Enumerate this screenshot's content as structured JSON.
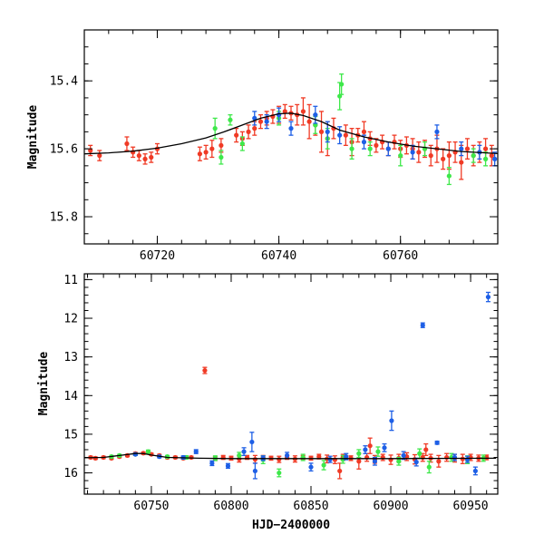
{
  "chart_data": [
    {
      "type": "scatter",
      "title": "",
      "xlabel": "",
      "ylabel": "Magnitude",
      "xlim": [
        60708,
        60776
      ],
      "ylim": [
        15.25,
        15.88
      ],
      "y_inverted": true,
      "grid": false,
      "x_ticks": [
        60720,
        60740,
        60760
      ],
      "x_tick_labels": [
        "60720",
        "60740",
        "60760"
      ],
      "y_ticks": [
        15.4,
        15.6,
        15.8
      ],
      "y_tick_labels": [
        "15.4",
        "15.6",
        "15.8"
      ],
      "model_curve": {
        "name": "model",
        "color": "#000000",
        "x": [
          60708,
          60712,
          60716,
          60720,
          60724,
          60728,
          60731,
          60734,
          60737,
          60740,
          60742,
          60744,
          60747,
          60750,
          60754,
          60758,
          60762,
          60766,
          60770,
          60774,
          60776
        ],
        "y": [
          15.615,
          15.612,
          15.607,
          15.598,
          15.585,
          15.568,
          15.55,
          15.53,
          15.51,
          15.497,
          15.495,
          15.502,
          15.52,
          15.545,
          15.565,
          15.58,
          15.592,
          15.6,
          15.608,
          15.612,
          15.614
        ]
      },
      "series": [
        {
          "name": "red",
          "color": "#f03a25",
          "x": [
            60709,
            60710.5,
            60715,
            60716,
            60717,
            60718,
            60719,
            60720,
            60727,
            60728,
            60729,
            60730.5,
            60733,
            60734,
            60735,
            60736,
            60737,
            60738,
            60739,
            60740,
            60741,
            60742,
            60743,
            60744,
            60745,
            60746,
            60747,
            60748,
            60749,
            60751,
            60752,
            60753,
            60754,
            60755,
            60756,
            60757,
            60758,
            60759,
            60760,
            60761,
            60762,
            60763,
            60764,
            60765,
            60766,
            60767,
            60768,
            60769,
            60770,
            60771,
            60772,
            60773,
            60774,
            60775
          ],
          "y": [
            15.605,
            15.62,
            15.585,
            15.61,
            15.62,
            15.63,
            15.625,
            15.6,
            15.615,
            15.61,
            15.6,
            15.59,
            15.56,
            15.57,
            15.55,
            15.54,
            15.52,
            15.51,
            15.505,
            15.5,
            15.49,
            15.495,
            15.5,
            15.49,
            15.52,
            15.53,
            15.55,
            15.57,
            15.54,
            15.56,
            15.58,
            15.56,
            15.55,
            15.57,
            15.59,
            15.58,
            15.6,
            15.58,
            15.6,
            15.59,
            15.6,
            15.61,
            15.6,
            15.62,
            15.6,
            15.63,
            15.62,
            15.61,
            15.64,
            15.6,
            15.62,
            15.61,
            15.6,
            15.62
          ],
          "yerr": [
            0.015,
            0.015,
            0.02,
            0.015,
            0.015,
            0.015,
            0.015,
            0.015,
            0.02,
            0.02,
            0.025,
            0.02,
            0.02,
            0.02,
            0.02,
            0.02,
            0.02,
            0.02,
            0.02,
            0.025,
            0.02,
            0.02,
            0.03,
            0.04,
            0.05,
            0.03,
            0.06,
            0.05,
            0.03,
            0.03,
            0.04,
            0.02,
            0.03,
            0.02,
            0.02,
            0.02,
            0.02,
            0.02,
            0.025,
            0.025,
            0.03,
            0.03,
            0.025,
            0.03,
            0.04,
            0.03,
            0.04,
            0.03,
            0.05,
            0.03,
            0.03,
            0.03,
            0.03,
            0.03
          ]
        },
        {
          "name": "green",
          "color": "#3ee84a",
          "x": [
            60729.5,
            60730.5,
            60732,
            60734,
            60740,
            60746,
            60748,
            60750,
            60750.3,
            60752,
            60755,
            60760,
            60764,
            60768,
            60772,
            60774
          ],
          "y": [
            15.54,
            15.625,
            15.515,
            15.585,
            15.51,
            15.53,
            15.57,
            15.445,
            15.41,
            15.6,
            15.6,
            15.62,
            15.6,
            15.68,
            15.62,
            15.63
          ],
          "yerr": [
            0.03,
            0.02,
            0.015,
            0.02,
            0.02,
            0.025,
            0.03,
            0.04,
            0.03,
            0.03,
            0.02,
            0.03,
            0.02,
            0.025,
            0.02,
            0.02
          ]
        },
        {
          "name": "blue",
          "color": "#1e5fe6",
          "x": [
            60736,
            60738,
            60740,
            60742,
            60746,
            60748,
            60750,
            60754,
            60758,
            60762,
            60766,
            60770,
            60773,
            60775.5
          ],
          "y": [
            15.51,
            15.52,
            15.5,
            15.54,
            15.5,
            15.55,
            15.56,
            15.58,
            15.6,
            15.61,
            15.55,
            15.6,
            15.61,
            15.63
          ],
          "yerr": [
            0.02,
            0.02,
            0.02,
            0.02,
            0.025,
            0.03,
            0.025,
            0.02,
            0.02,
            0.02,
            0.02,
            0.02,
            0.02,
            0.02
          ]
        }
      ]
    },
    {
      "type": "scatter",
      "title": "",
      "xlabel": "HJD−2400000",
      "ylabel": "Magnitude",
      "xlim": [
        60708,
        60967
      ],
      "ylim": [
        10.85,
        16.55
      ],
      "y_inverted": true,
      "grid": false,
      "x_ticks": [
        60750,
        60800,
        60850,
        60900,
        60950
      ],
      "x_tick_labels": [
        "60750",
        "60800",
        "60850",
        "60900",
        "60950"
      ],
      "y_ticks": [
        11,
        12,
        13,
        14,
        15,
        16
      ],
      "y_tick_labels": [
        "11",
        "12",
        "13",
        "14",
        "15",
        "16"
      ],
      "model_curve": {
        "name": "model",
        "color": "#000000",
        "x": [
          60708,
          60720,
          60730,
          60740,
          60745,
          60750,
          60760,
          60780,
          60800,
          60850,
          60900,
          60966
        ],
        "y": [
          15.61,
          15.6,
          15.55,
          15.5,
          15.5,
          15.54,
          15.6,
          15.62,
          15.63,
          15.63,
          15.63,
          15.62
        ]
      },
      "series": [
        {
          "name": "red",
          "color": "#f03a25",
          "x": [
            60712,
            60715,
            60720,
            60725,
            60730,
            60735,
            60740,
            60745,
            60750,
            60755,
            60760,
            60765,
            60770,
            60775,
            60783.5,
            60790,
            60795,
            60800,
            60805,
            60810,
            60815,
            60820,
            60825,
            60830,
            60835,
            60840,
            60845,
            60850,
            60855,
            60860,
            60865,
            60868,
            60870,
            60875,
            60880,
            60885,
            60887,
            60890,
            60895,
            60900,
            60905,
            60910,
            60915,
            60920,
            60922,
            60925,
            60930,
            60935,
            60940,
            60945,
            60950,
            60955,
            60960
          ],
          "y": [
            15.6,
            15.62,
            15.6,
            15.62,
            15.58,
            15.55,
            15.5,
            15.49,
            15.52,
            15.55,
            15.6,
            15.6,
            15.62,
            15.6,
            13.35,
            15.63,
            15.6,
            15.62,
            15.64,
            15.6,
            15.65,
            15.6,
            15.62,
            15.65,
            15.6,
            15.64,
            15.6,
            15.62,
            15.58,
            15.64,
            15.66,
            15.95,
            15.6,
            15.62,
            15.7,
            15.6,
            15.3,
            15.65,
            15.6,
            15.66,
            15.62,
            15.58,
            15.65,
            15.6,
            15.4,
            15.62,
            15.7,
            15.6,
            15.62,
            15.64,
            15.6,
            15.62,
            15.6
          ],
          "yerr": [
            0.03,
            0.03,
            0.03,
            0.03,
            0.03,
            0.03,
            0.03,
            0.03,
            0.03,
            0.03,
            0.03,
            0.03,
            0.03,
            0.03,
            0.08,
            0.05,
            0.05,
            0.05,
            0.08,
            0.05,
            0.1,
            0.05,
            0.05,
            0.08,
            0.05,
            0.08,
            0.05,
            0.05,
            0.06,
            0.1,
            0.1,
            0.2,
            0.08,
            0.06,
            0.2,
            0.1,
            0.2,
            0.1,
            0.08,
            0.12,
            0.1,
            0.1,
            0.12,
            0.1,
            0.15,
            0.1,
            0.15,
            0.1,
            0.1,
            0.12,
            0.08,
            0.08,
            0.06
          ]
        },
        {
          "name": "green",
          "color": "#3ee84a",
          "x": [
            60725,
            60730,
            60740,
            60748,
            60760,
            60772,
            60790,
            60805,
            60820,
            60830,
            60845,
            60858,
            60870,
            60880,
            60892,
            60905,
            60918,
            60924,
            60938,
            60948,
            60958
          ],
          "y": [
            15.58,
            15.55,
            15.52,
            15.45,
            15.58,
            15.6,
            15.62,
            15.55,
            15.66,
            16.0,
            15.6,
            15.8,
            15.65,
            15.5,
            15.45,
            15.7,
            15.5,
            15.85,
            15.6,
            15.66,
            15.62
          ],
          "yerr": [
            0.03,
            0.03,
            0.03,
            0.04,
            0.03,
            0.04,
            0.06,
            0.08,
            0.1,
            0.1,
            0.08,
            0.12,
            0.1,
            0.1,
            0.12,
            0.1,
            0.12,
            0.15,
            0.1,
            0.1,
            0.08
          ]
        },
        {
          "name": "blue",
          "color": "#1e5fe6",
          "x": [
            60740,
            60755,
            60770,
            60778,
            60788,
            60798,
            60808,
            60813,
            60815,
            60820,
            60835,
            60850,
            60862,
            60872,
            60884,
            60890,
            60896,
            60900.5,
            60908,
            60916,
            60920,
            60929,
            60940,
            60948,
            60953,
            60961
          ],
          "y": [
            15.52,
            15.58,
            15.6,
            15.45,
            15.75,
            15.82,
            15.45,
            15.2,
            15.95,
            15.62,
            15.55,
            15.85,
            15.65,
            15.58,
            15.4,
            15.7,
            15.35,
            14.65,
            15.55,
            15.72,
            12.18,
            15.22,
            15.6,
            15.65,
            15.95,
            11.45
          ],
          "yerr": [
            0.03,
            0.03,
            0.04,
            0.05,
            0.06,
            0.06,
            0.1,
            0.25,
            0.2,
            0.06,
            0.08,
            0.1,
            0.08,
            0.08,
            0.1,
            0.1,
            0.1,
            0.25,
            0.1,
            0.1,
            0.06,
            0.04,
            0.08,
            0.08,
            0.1,
            0.12
          ]
        }
      ]
    }
  ]
}
